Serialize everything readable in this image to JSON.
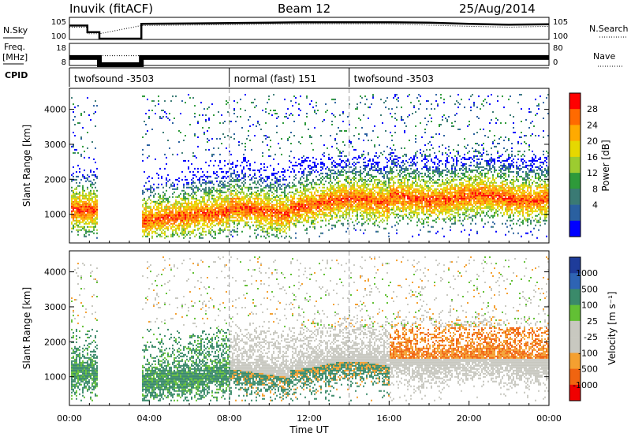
{
  "header": {
    "station": "Inuvik (fitACF)",
    "beam": "Beam 12",
    "date": "25/Aug/2014"
  },
  "left_labels": {
    "nsky": "N.Sky",
    "freq": "Freq.",
    "freq_unit": "[MHz]",
    "cpid": "CPID"
  },
  "right_labels": {
    "nsearch": "N.Search",
    "nave": "Nave",
    "nsearch_style": "dotted",
    "nave_style": "dotted"
  },
  "chart_data": [
    {
      "type": "line",
      "panel": "noise",
      "y_scale": "log",
      "left_ticks": [
        "10^5",
        "10^0"
      ],
      "right_ticks": [
        "10^5",
        "10^0"
      ],
      "series": [
        {
          "name": "N.Sky",
          "style": "solid",
          "x": [
            0.0,
            0.9,
            0.9,
            1.5,
            1.5,
            3.6,
            3.6,
            6,
            8,
            10,
            12,
            14,
            16,
            18,
            20,
            22,
            24
          ],
          "y": [
            3.2,
            3.2,
            1.6,
            1.6,
            0.0,
            0.0,
            3.6,
            3.7,
            3.8,
            3.9,
            4.0,
            4.0,
            4.0,
            3.9,
            3.6,
            3.4,
            3.5
          ]
        },
        {
          "name": "N.Search",
          "style": "dotted",
          "x": [
            0.0,
            0.9,
            0.9,
            1.5,
            3.6,
            8,
            12,
            16,
            20,
            22,
            24
          ],
          "y": [
            2.8,
            2.8,
            1.2,
            1.2,
            3.2,
            3.4,
            3.6,
            3.6,
            3.0,
            2.8,
            3.0
          ]
        }
      ]
    },
    {
      "type": "line",
      "panel": "frequency",
      "left_ticks": [
        18,
        8
      ],
      "right_ticks": [
        80,
        0
      ],
      "series": [
        {
          "name": "Freq",
          "style": "solid",
          "x": [
            0.0,
            1.5,
            1.5,
            3.6,
            3.6,
            24.0
          ],
          "y": [
            11.5,
            11.5,
            8,
            8,
            11.5,
            11.5
          ]
        },
        {
          "name": "Nave",
          "style": "dotted",
          "x": [
            0.0,
            1.5,
            3.6,
            8.0,
            8.0,
            14.0,
            14.0,
            24.0
          ],
          "y": [
            35,
            35,
            35,
            35,
            25,
            25,
            35,
            35
          ]
        }
      ]
    },
    {
      "type": "table",
      "panel": "cpid",
      "segments": [
        {
          "label": "twofsound -3503",
          "start": 0.0,
          "end": 8.0
        },
        {
          "label": "normal (fast) 151",
          "start": 8.0,
          "end": 14.0
        },
        {
          "label": "twofsound -3503",
          "start": 14.0,
          "end": 24.0
        }
      ]
    },
    {
      "type": "heatmap",
      "panel": "power",
      "ylabel": "Slant Range [km]",
      "y_ticks": [
        1000,
        2000,
        3000,
        4000
      ],
      "ylim": [
        180,
        4600
      ],
      "xlim": [
        0,
        24
      ],
      "colorbar": {
        "label": "Power [dB]",
        "ticks": [
          28,
          24,
          20,
          16,
          12,
          8,
          4
        ],
        "colors": [
          "#ff0000",
          "#ff6a00",
          "#ffaa00",
          "#e6d800",
          "#9ccc30",
          "#2e9a3a",
          "#3a7a74",
          "#2a60a0",
          "#0000ff"
        ]
      },
      "gaps": [
        [
          1.4,
          3.6
        ]
      ]
    },
    {
      "type": "heatmap",
      "panel": "velocity",
      "ylabel": "Slant Range [km]",
      "xlabel": "Time UT",
      "x_ticks": [
        "00:00",
        "04:00",
        "08:00",
        "12:00",
        "16:00",
        "20:00",
        "00:00"
      ],
      "y_ticks": [
        1000,
        2000,
        3000,
        4000
      ],
      "ylim": [
        180,
        4600
      ],
      "xlim": [
        0,
        24
      ],
      "colorbar": {
        "label": "Velocity [m s⁻¹]",
        "ticks": [
          1000,
          500,
          100,
          25,
          -25,
          -100,
          -500,
          -1000
        ],
        "colors": [
          "#1e3c9a",
          "#2e64b4",
          "#3a8a6a",
          "#62c034",
          "#c8c8c0",
          "#c8c8c0",
          "#f4a030",
          "#f06410",
          "#f00000"
        ]
      },
      "gaps": [
        [
          1.4,
          3.6
        ]
      ]
    }
  ],
  "colors": {
    "power_scale": [
      "#0000ff",
      "#2a60a0",
      "#3a7a74",
      "#2e9a3a",
      "#9ccc30",
      "#e6d800",
      "#ffaa00",
      "#ff6a00",
      "#ff0000"
    ],
    "velocity_scale": [
      "#1e3c9a",
      "#2e64b4",
      "#3a8a6a",
      "#62c034",
      "#c8c8c0",
      "#f4a030",
      "#f06410",
      "#f00000"
    ]
  }
}
